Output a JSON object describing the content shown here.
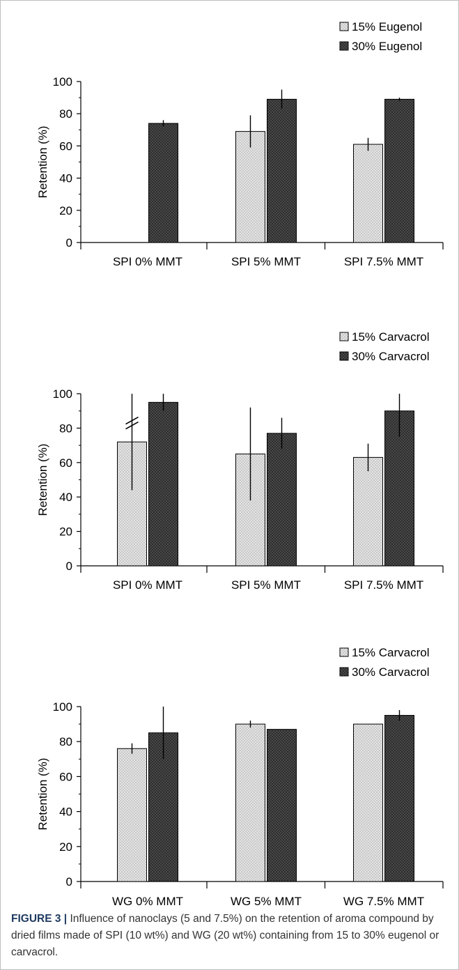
{
  "chart_data": [
    {
      "type": "bar",
      "categories": [
        "SPI 0% MMT",
        "SPI 5% MMT",
        "SPI 7.5% MMT"
      ],
      "series": [
        {
          "name": "15% Eugenol",
          "values": [
            0,
            69,
            61
          ],
          "errors": [
            0,
            10,
            4
          ],
          "pattern": "light-dotted"
        },
        {
          "name": "30% Eugenol",
          "values": [
            74,
            89,
            89
          ],
          "errors": [
            2,
            6,
            1
          ],
          "pattern": "dark-dotted"
        }
      ],
      "ylabel": "Retention (%)",
      "ylim": [
        0,
        100
      ],
      "yticks": [
        0,
        20,
        40,
        60,
        80,
        100
      ],
      "axis_break_marker": false,
      "legend": "top-right"
    },
    {
      "type": "bar",
      "categories": [
        "SPI 0% MMT",
        "SPI 5% MMT",
        "SPI 7.5% MMT"
      ],
      "series": [
        {
          "name": "15% Carvacrol",
          "values": [
            72,
            65,
            63
          ],
          "errors": [
            28,
            27,
            8
          ],
          "pattern": "light-dotted"
        },
        {
          "name": "30% Carvacrol",
          "values": [
            95,
            77,
            90
          ],
          "errors": [
            5,
            9,
            15
          ],
          "pattern": "dark-dotted"
        }
      ],
      "ylabel": "Retention (%)",
      "ylim": [
        0,
        100
      ],
      "yticks": [
        0,
        20,
        40,
        60,
        80,
        100
      ],
      "axis_break_marker": true,
      "legend": "top-right"
    },
    {
      "type": "bar",
      "categories": [
        "WG 0% MMT",
        "WG 5% MMT",
        "WG 7.5% MMT"
      ],
      "series": [
        {
          "name": "15% Carvacrol",
          "values": [
            76,
            90,
            90
          ],
          "errors": [
            3,
            2,
            0
          ],
          "pattern": "light-dotted"
        },
        {
          "name": "30% Carvacrol",
          "values": [
            85,
            87,
            95
          ],
          "errors": [
            15,
            0,
            3
          ],
          "pattern": "dark-dotted"
        }
      ],
      "ylabel": "Retention (%)",
      "ylim": [
        0,
        100
      ],
      "yticks": [
        0,
        20,
        40,
        60,
        80,
        100
      ],
      "axis_break_marker": false,
      "legend": "top-right"
    }
  ],
  "caption": {
    "label": "FIGURE 3 |",
    "text": " Influence of nanoclays (5 and 7.5%) on the retention of aroma compound by dried films made of SPI (10 wt%) and WG (20 wt%) containing from 15 to 30% eugenol or carvacrol."
  },
  "colors": {
    "light_bar_fill": "#e3e3e3",
    "light_bar_dot": "#8a8a8a",
    "dark_bar_fill": "#2e2e2e",
    "dark_bar_dot": "#8c8c8c",
    "bar_border": "#000000",
    "axis": "#000000",
    "caption_label": "#1e3a5f",
    "caption_text": "#333333"
  }
}
